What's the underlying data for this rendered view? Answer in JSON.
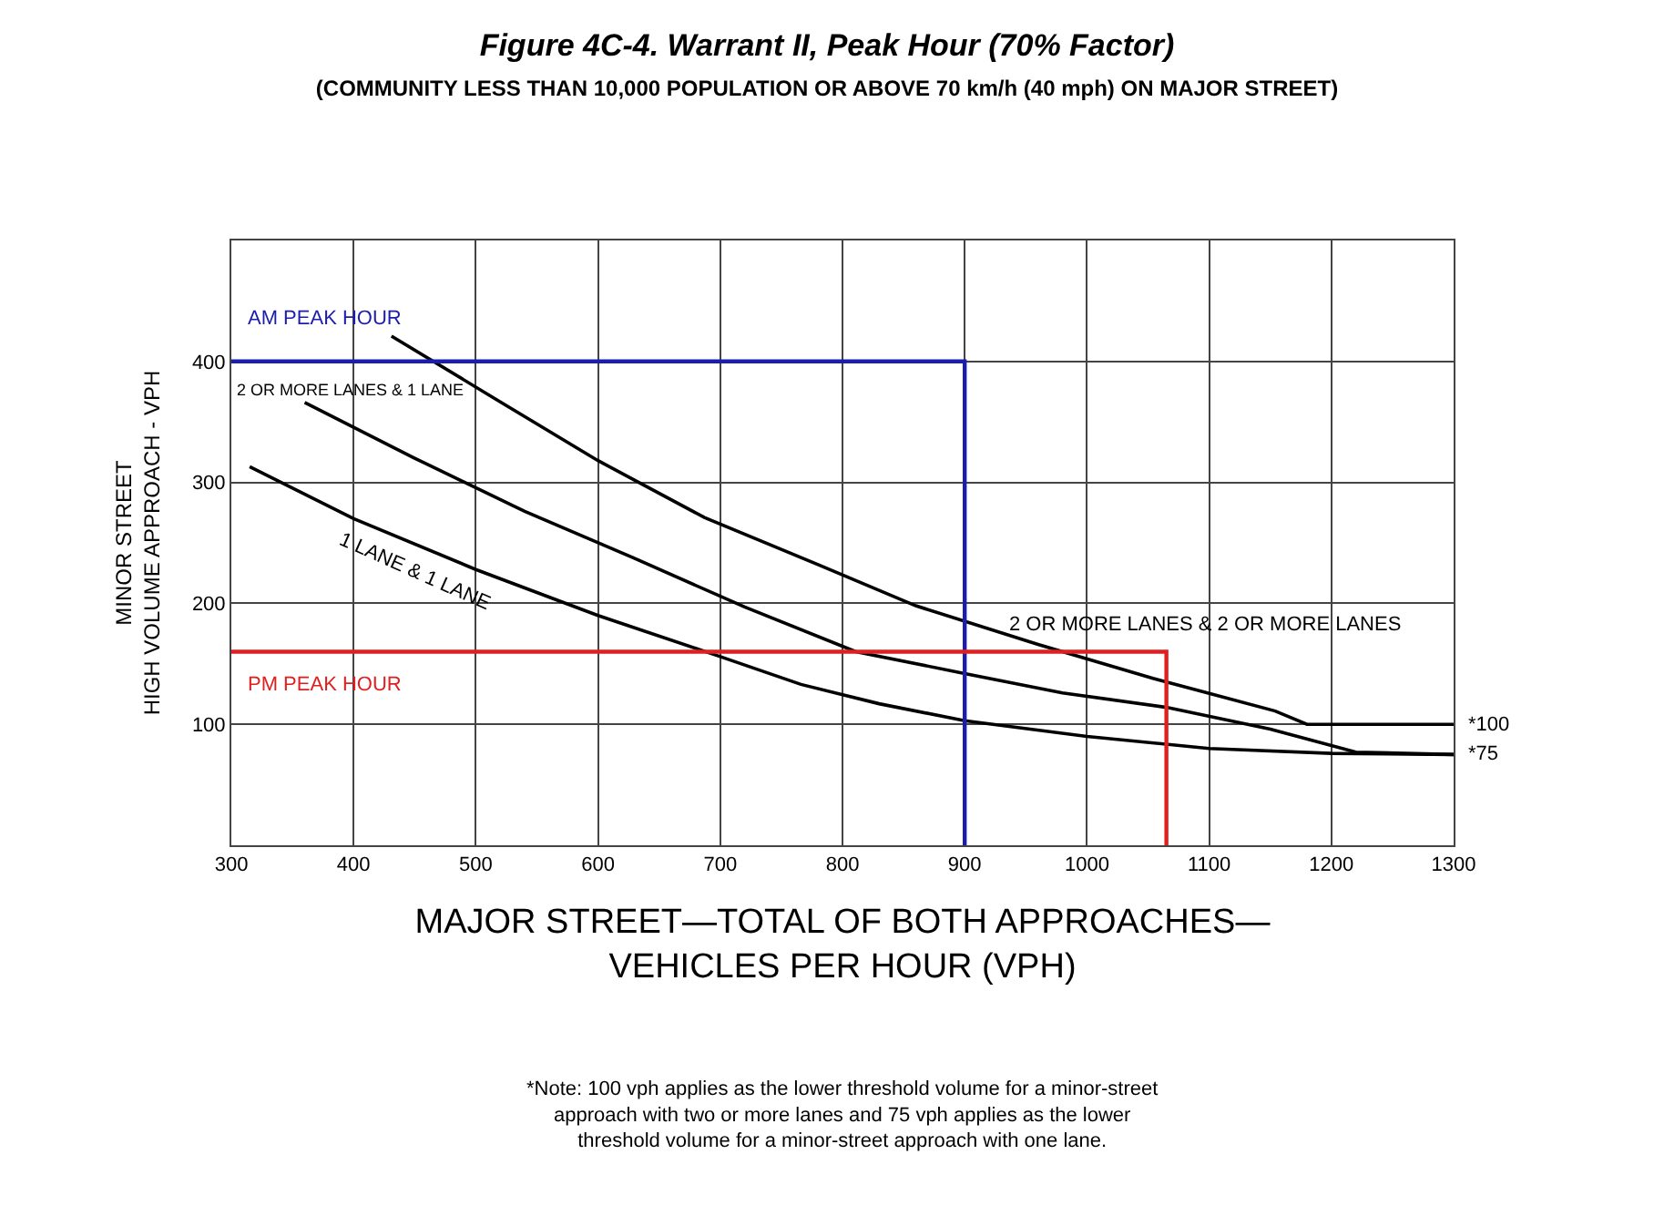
{
  "chart_data": {
    "type": "line",
    "title": "Figure 4C-4. Warrant II, Peak Hour (70% Factor)",
    "subtitle": "(COMMUNITY LESS THAN 10,000 POPULATION OR ABOVE 70 km/h (40 mph) ON MAJOR STREET)",
    "xlabel": "MAJOR STREET—TOTAL OF BOTH APPROACHES—\nVEHICLES PER HOUR (VPH)",
    "ylabel": "MINOR STREET\nHIGH VOLUME APPROACH - VPH",
    "xlim": [
      300,
      1300
    ],
    "xticks": [
      300,
      400,
      500,
      600,
      700,
      800,
      900,
      1000,
      1100,
      1200,
      1300
    ],
    "ylim": [
      0,
      500
    ],
    "yticks": [
      100,
      200,
      300,
      400
    ],
    "grid": true,
    "legend": false,
    "marker": "none",
    "line_style": "solid",
    "series": [
      {
        "name": "2 OR MORE LANES & 2 OR MORE LANES",
        "color": "#000000",
        "x": [
          431,
          516,
          600,
          687,
          780,
          860,
          960,
          1054,
          1154,
          1180,
          1300
        ],
        "values": [
          421,
          369,
          318,
          271,
          232,
          198,
          166,
          138,
          111,
          100,
          100
        ]
      },
      {
        "name": "2 OR MORE LANES & 1 LANE",
        "color": "#000000",
        "x": [
          360,
          450,
          540,
          628,
          720,
          811,
          900,
          980,
          1065,
          1150,
          1220,
          1300
        ],
        "values": [
          366,
          320,
          276,
          238,
          197,
          160,
          142,
          126,
          114,
          96,
          77,
          75
        ]
      },
      {
        "name": "1 LANE & 1 LANE",
        "color": "#000000",
        "x": [
          315,
          400,
          500,
          600,
          700,
          766,
          830,
          900,
          1000,
          1100,
          1200,
          1300
        ],
        "values": [
          313,
          270,
          228,
          190,
          156,
          133,
          117,
          103,
          90,
          80,
          76,
          75
        ]
      },
      {
        "name": "AM PEAK HOUR",
        "color": "#1c1cae",
        "x": [
          300,
          900,
          900
        ],
        "values": [
          400,
          400,
          0
        ]
      },
      {
        "name": "PM PEAK HOUR",
        "color": "#e02020",
        "x": [
          300,
          1065,
          1065
        ],
        "values": [
          160,
          160,
          0
        ]
      }
    ],
    "annotations": [
      {
        "text": "*100",
        "x": 1300,
        "y": 100
      },
      {
        "text": "*75",
        "x": 1300,
        "y": 75
      },
      "*Note: 100 vph applies as the lower threshold volume for a minor-street\napproach with two or more lanes and 75 vph applies as the lower\nthreshold volume for a minor-street approach with one lane."
    ]
  }
}
